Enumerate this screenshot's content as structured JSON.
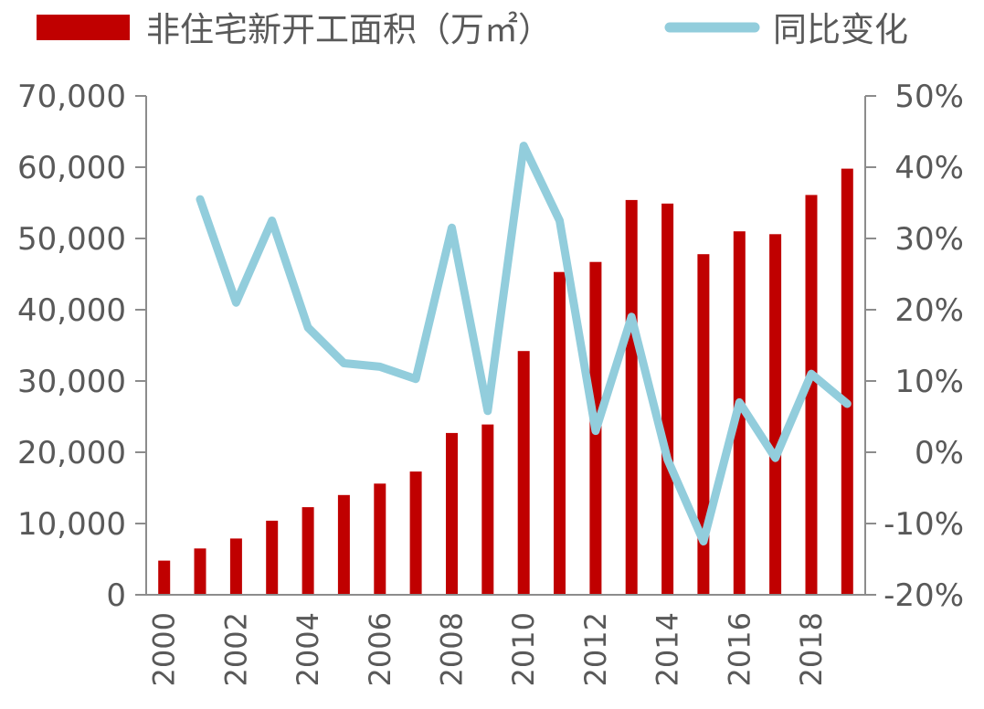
{
  "chart_data": {
    "type": "bar",
    "title": "",
    "xlabel": "",
    "ylabel": "",
    "categories": [
      "2000",
      "2001",
      "2002",
      "2003",
      "2004",
      "2005",
      "2006",
      "2007",
      "2008",
      "2009",
      "2010",
      "2011",
      "2012",
      "2013",
      "2014",
      "2015",
      "2016",
      "2017",
      "2018",
      "2019"
    ],
    "x_tick_labels": [
      "2000",
      "2002",
      "2004",
      "2006",
      "2008",
      "2010",
      "2012",
      "2014",
      "2016",
      "2018"
    ],
    "series": [
      {
        "name": "非住宅新开工面积（万㎡）",
        "type": "bar",
        "axis": "left",
        "color": "#c00000",
        "values": [
          4800,
          6500,
          7900,
          10400,
          12300,
          14000,
          15600,
          17300,
          22700,
          23900,
          34200,
          45300,
          46700,
          55400,
          54900,
          47800,
          51000,
          50600,
          56100,
          59800
        ]
      },
      {
        "name": "同比变化",
        "type": "line",
        "axis": "right",
        "color": "#92cddc",
        "values": [
          null,
          35.5,
          21,
          32.5,
          17.5,
          12.5,
          12,
          10.3,
          31.5,
          5.8,
          43,
          32.5,
          3,
          19,
          -1,
          -12.5,
          7,
          -0.8,
          11,
          6.8
        ]
      }
    ],
    "y_left": {
      "min": 0,
      "max": 70000,
      "ticks": [
        0,
        10000,
        20000,
        30000,
        40000,
        50000,
        60000,
        70000
      ],
      "tick_labels": [
        "0",
        "10,000",
        "20,000",
        "30,000",
        "40,000",
        "50,000",
        "60,000",
        "70,000"
      ]
    },
    "y_right": {
      "min": -20,
      "max": 50,
      "ticks": [
        -20,
        -10,
        0,
        10,
        20,
        30,
        40,
        50
      ],
      "tick_labels": [
        "-20%",
        "-10%",
        "0%",
        "10%",
        "20%",
        "30%",
        "40%",
        "50%"
      ]
    },
    "grid": false,
    "legend_position": "top"
  }
}
